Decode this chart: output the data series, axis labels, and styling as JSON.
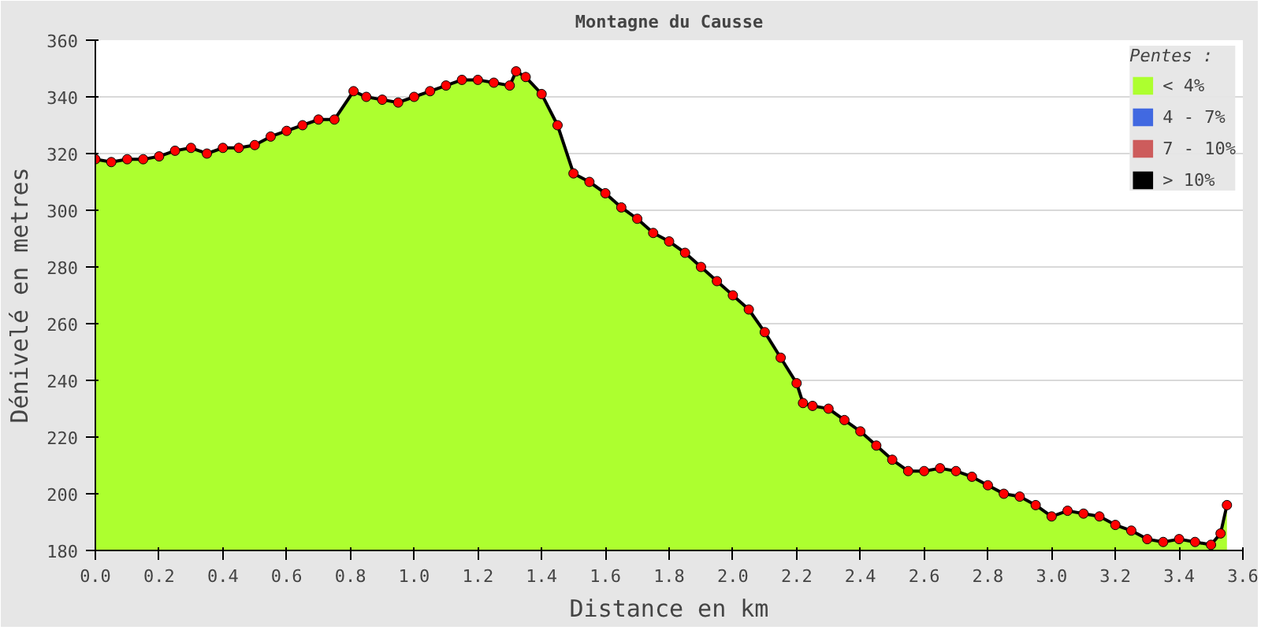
{
  "chart_data": {
    "type": "area",
    "title": "Montagne du Causse",
    "xlabel": "Distance en km",
    "ylabel": "Dénivelé en metres",
    "legend_title": "Pentes :",
    "x": [
      0.0,
      0.05,
      0.1,
      0.15,
      0.2,
      0.25,
      0.3,
      0.35,
      0.4,
      0.45,
      0.5,
      0.55,
      0.6,
      0.65,
      0.7,
      0.75,
      0.81,
      0.85,
      0.9,
      0.95,
      1.0,
      1.05,
      1.1,
      1.15,
      1.2,
      1.25,
      1.3,
      1.32,
      1.35,
      1.4,
      1.45,
      1.5,
      1.55,
      1.6,
      1.65,
      1.7,
      1.75,
      1.8,
      1.85,
      1.9,
      1.95,
      2.0,
      2.05,
      2.1,
      2.15,
      2.2,
      2.22,
      2.25,
      2.3,
      2.35,
      2.4,
      2.45,
      2.5,
      2.55,
      2.6,
      2.65,
      2.7,
      2.75,
      2.8,
      2.85,
      2.9,
      2.95,
      3.0,
      3.05,
      3.1,
      3.15,
      3.2,
      3.25,
      3.3,
      3.35,
      3.4,
      3.45,
      3.5,
      3.53,
      3.55
    ],
    "series": [
      {
        "name": "< 4%",
        "color": "#adff2f",
        "values": [
          318,
          317,
          318,
          318,
          319,
          321,
          322,
          320,
          322,
          322,
          323,
          326,
          328,
          330,
          332,
          332,
          342,
          340,
          339,
          338,
          340,
          342,
          344,
          346,
          346,
          345,
          344,
          349,
          347,
          341,
          330,
          313,
          310,
          306,
          301,
          297,
          292,
          289,
          285,
          280,
          275,
          270,
          265,
          257,
          248,
          239,
          232,
          231,
          230,
          226,
          222,
          217,
          212,
          208,
          208,
          209,
          208,
          206,
          203,
          200,
          199,
          196,
          192,
          194,
          193,
          192,
          189,
          187,
          184,
          183,
          184,
          183,
          182,
          186,
          196
        ]
      },
      {
        "name": "4 - 7%",
        "color": "#4169e1",
        "values": [
          null,
          null,
          null,
          null,
          null,
          null,
          null,
          null,
          null,
          null,
          null,
          null,
          null,
          null,
          null,
          null,
          null,
          null,
          null,
          null,
          null,
          null,
          null,
          null,
          null,
          null,
          null,
          null,
          null,
          null,
          null,
          null,
          null,
          null,
          null,
          null,
          null,
          null,
          null,
          null,
          null,
          null,
          null,
          null,
          null,
          null,
          null,
          null,
          null,
          null,
          null,
          null,
          null,
          null,
          null,
          null,
          null,
          null,
          null,
          null,
          null,
          null,
          null,
          null,
          null,
          null,
          null,
          null,
          null,
          null,
          null,
          null,
          null,
          null,
          null
        ]
      },
      {
        "name": "7 - 10%",
        "color": "#cd5c5c",
        "values": [
          null,
          null,
          null,
          null,
          null,
          null,
          null,
          null,
          null,
          null,
          null,
          null,
          null,
          null,
          null,
          null,
          null,
          null,
          null,
          null,
          null,
          null,
          null,
          null,
          null,
          null,
          null,
          null,
          null,
          null,
          null,
          null,
          null,
          null,
          null,
          null,
          null,
          null,
          null,
          null,
          null,
          null,
          null,
          null,
          null,
          null,
          null,
          null,
          null,
          null,
          null,
          null,
          null,
          null,
          null,
          null,
          null,
          null,
          null,
          null,
          null,
          null,
          null,
          null,
          null,
          null,
          null,
          null,
          null,
          null,
          null,
          null,
          null,
          null,
          null
        ]
      },
      {
        "name": "> 10%",
        "color": "#000000",
        "values": [
          null,
          null,
          null,
          null,
          null,
          null,
          null,
          null,
          null,
          null,
          null,
          null,
          null,
          null,
          null,
          null,
          null,
          null,
          null,
          null,
          null,
          null,
          null,
          null,
          null,
          null,
          null,
          null,
          null,
          null,
          null,
          null,
          null,
          null,
          null,
          null,
          null,
          null,
          null,
          null,
          null,
          null,
          null,
          null,
          null,
          null,
          null,
          null,
          null,
          null,
          null,
          null,
          null,
          null,
          null,
          null,
          null,
          null,
          null,
          null,
          null,
          null,
          null,
          null,
          null,
          null,
          null,
          null,
          null,
          null,
          null,
          null,
          null,
          null,
          null
        ]
      },
      {
        "type": "scatter",
        "marker": "circle",
        "color": "#ff0000",
        "values": [
          318,
          317,
          318,
          318,
          319,
          321,
          322,
          320,
          322,
          322,
          323,
          326,
          328,
          330,
          332,
          332,
          342,
          340,
          339,
          338,
          340,
          342,
          344,
          346,
          346,
          345,
          344,
          349,
          347,
          341,
          330,
          313,
          310,
          306,
          301,
          297,
          292,
          289,
          285,
          280,
          275,
          270,
          265,
          257,
          248,
          239,
          232,
          231,
          230,
          226,
          222,
          217,
          212,
          208,
          208,
          209,
          208,
          206,
          203,
          200,
          199,
          196,
          192,
          194,
          193,
          192,
          189,
          187,
          184,
          183,
          184,
          183,
          182,
          186,
          196
        ]
      }
    ],
    "xlim": [
      0,
      3.6
    ],
    "ylim": [
      180,
      360
    ],
    "xticks": [
      {
        "value": 0,
        "label": "0.0"
      },
      {
        "value": 0.2,
        "label": "0.2"
      },
      {
        "value": 0.4,
        "label": "0.4"
      },
      {
        "value": 0.6,
        "label": "0.6"
      },
      {
        "value": 0.8,
        "label": "0.8"
      },
      {
        "value": 1.0,
        "label": "1.0"
      },
      {
        "value": 1.2,
        "label": "1.2"
      },
      {
        "value": 1.4,
        "label": "1.4"
      },
      {
        "value": 1.6,
        "label": "1.6"
      },
      {
        "value": 1.8,
        "label": "1.8"
      },
      {
        "value": 2.0,
        "label": "2.0"
      },
      {
        "value": 2.2,
        "label": "2.2"
      },
      {
        "value": 2.4,
        "label": "2.4"
      },
      {
        "value": 2.6,
        "label": "2.6"
      },
      {
        "value": 2.8,
        "label": "2.8"
      },
      {
        "value": 3.0,
        "label": "3.0"
      },
      {
        "value": 3.2,
        "label": "3.2"
      },
      {
        "value": 3.4,
        "label": "3.4"
      },
      {
        "value": 3.6,
        "label": "3.6"
      }
    ],
    "yticks": [
      180,
      200,
      220,
      240,
      260,
      280,
      300,
      320,
      340,
      360
    ],
    "grid": "y",
    "legend": "top right"
  }
}
